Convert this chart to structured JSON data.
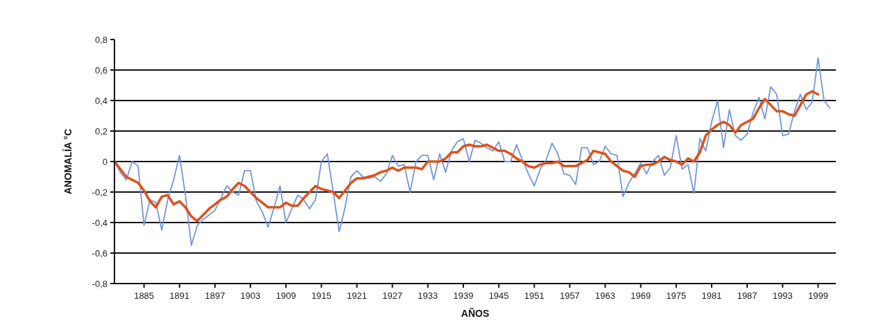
{
  "chart_data": {
    "type": "line",
    "xlabel": "AÑOS",
    "ylabel": "ANOMALÍA °C",
    "xlim": [
      1880,
      2002
    ],
    "xticks": [
      1885,
      1891,
      1897,
      1903,
      1909,
      1915,
      1921,
      1927,
      1933,
      1939,
      1945,
      1951,
      1957,
      1963,
      1969,
      1975,
      1981,
      1987,
      1993,
      1999
    ],
    "ylim": [
      -0.8,
      0.8
    ],
    "yticks": [
      {
        "value": -0.8,
        "label": "-0,8"
      },
      {
        "value": -0.6,
        "label": "-0,6"
      },
      {
        "value": -0.4,
        "label": "-0,4"
      },
      {
        "value": -0.2,
        "label": "-0,2"
      },
      0,
      {
        "value": 0.2,
        "label": "0,2"
      },
      {
        "value": 0.4,
        "label": "0,4"
      },
      {
        "value": 0.6,
        "label": "0,6"
      },
      {
        "value": 0.8,
        "label": "0,8"
      }
    ],
    "grid": "y",
    "line_style": "solid",
    "marker": "none",
    "series": [
      {
        "color": "#7096dc",
        "x": [
          1880,
          1881,
          1882,
          1883,
          1884,
          1885,
          1886,
          1887,
          1888,
          1889,
          1890,
          1891,
          1892,
          1893,
          1894,
          1895,
          1896,
          1897,
          1898,
          1899,
          1900,
          1901,
          1902,
          1903,
          1904,
          1905,
          1906,
          1907,
          1908,
          1909,
          1910,
          1911,
          1912,
          1913,
          1914,
          1915,
          1916,
          1917,
          1918,
          1919,
          1920,
          1921,
          1922,
          1923,
          1924,
          1925,
          1926,
          1927,
          1928,
          1929,
          1930,
          1931,
          1932,
          1933,
          1934,
          1935,
          1936,
          1937,
          1938,
          1939,
          1940,
          1941,
          1942,
          1943,
          1944,
          1945,
          1946,
          1947,
          1948,
          1949,
          1950,
          1951,
          1952,
          1953,
          1954,
          1955,
          1956,
          1957,
          1958,
          1959,
          1960,
          1961,
          1962,
          1963,
          1964,
          1965,
          1966,
          1967,
          1968,
          1969,
          1970,
          1971,
          1972,
          1973,
          1974,
          1975,
          1976,
          1977,
          1978,
          1979,
          1980,
          1981,
          1982,
          1983,
          1984,
          1985,
          1986,
          1987,
          1988,
          1989,
          1990,
          1991,
          1992,
          1993,
          1994,
          1995,
          1996,
          1997,
          1998,
          1999,
          2000,
          2001
        ],
        "values": [
          0,
          -0.07,
          -0.12,
          0,
          -0.03,
          -0.42,
          -0.25,
          -0.27,
          -0.45,
          -0.25,
          -0.12,
          0.04,
          -0.22,
          -0.55,
          -0.42,
          -0.38,
          -0.35,
          -0.32,
          -0.24,
          -0.16,
          -0.2,
          -0.22,
          -0.06,
          -0.06,
          -0.26,
          -0.33,
          -0.43,
          -0.3,
          -0.16,
          -0.4,
          -0.31,
          -0.22,
          -0.25,
          -0.31,
          -0.25,
          0,
          0.05,
          -0.2,
          -0.46,
          -0.3,
          -0.1,
          -0.06,
          -0.1,
          -0.11,
          -0.1,
          -0.13,
          -0.08,
          0.04,
          -0.03,
          -0.02,
          -0.2,
          0,
          0.04,
          0.04,
          -0.12,
          0.05,
          -0.07,
          0.07,
          0.13,
          0.15,
          0,
          0.14,
          0.12,
          0.09,
          0.07,
          0.13,
          0,
          0,
          0.11,
          0.01,
          -0.08,
          -0.16,
          -0.05,
          0.01,
          0.12,
          0.05,
          -0.08,
          -0.09,
          -0.15,
          0.09,
          0.09,
          -0.02,
          0,
          0.1,
          0.05,
          0.04,
          -0.23,
          -0.14,
          -0.08,
          -0.01,
          -0.08,
          0,
          0.04,
          -0.09,
          -0.04,
          0.17,
          -0.05,
          -0.02,
          -0.21,
          0.15,
          0.07,
          0.26,
          0.4,
          0.09,
          0.34,
          0.17,
          0.14,
          0.18,
          0.32,
          0.42,
          0.28,
          0.49,
          0.44,
          0.17,
          0.18,
          0.33,
          0.44,
          0.34,
          0.39,
          0.68,
          0.4,
          0.35
        ]
      },
      {
        "color": "#e0501a",
        "x": [
          1880,
          1881,
          1882,
          1883,
          1884,
          1885,
          1886,
          1887,
          1888,
          1889,
          1890,
          1891,
          1892,
          1893,
          1894,
          1895,
          1896,
          1897,
          1898,
          1899,
          1900,
          1901,
          1902,
          1903,
          1904,
          1905,
          1906,
          1907,
          1908,
          1909,
          1910,
          1911,
          1912,
          1913,
          1914,
          1915,
          1916,
          1917,
          1918,
          1919,
          1920,
          1921,
          1922,
          1923,
          1924,
          1925,
          1926,
          1927,
          1928,
          1929,
          1930,
          1931,
          1932,
          1933,
          1934,
          1935,
          1936,
          1937,
          1938,
          1939,
          1940,
          1941,
          1942,
          1943,
          1944,
          1945,
          1946,
          1947,
          1948,
          1949,
          1950,
          1951,
          1952,
          1953,
          1954,
          1955,
          1956,
          1957,
          1958,
          1959,
          1960,
          1961,
          1962,
          1963,
          1964,
          1965,
          1966,
          1967,
          1968,
          1969,
          1970,
          1971,
          1972,
          1973,
          1974,
          1975,
          1976,
          1977,
          1978,
          1979,
          1980,
          1981,
          1982,
          1983,
          1984,
          1985,
          1986,
          1987,
          1988,
          1989,
          1990,
          1991,
          1992,
          1993,
          1994,
          1995,
          1996,
          1997,
          1998,
          1999
        ],
        "values": [
          0,
          -0.05,
          -0.1,
          -0.12,
          -0.14,
          -0.19,
          -0.26,
          -0.3,
          -0.23,
          -0.22,
          -0.28,
          -0.26,
          -0.3,
          -0.36,
          -0.39,
          -0.35,
          -0.31,
          -0.28,
          -0.25,
          -0.23,
          -0.18,
          -0.14,
          -0.16,
          -0.2,
          -0.24,
          -0.27,
          -0.3,
          -0.3,
          -0.3,
          -0.27,
          -0.29,
          -0.29,
          -0.24,
          -0.2,
          -0.16,
          -0.18,
          -0.19,
          -0.2,
          -0.24,
          -0.19,
          -0.14,
          -0.11,
          -0.11,
          -0.1,
          -0.09,
          -0.07,
          -0.06,
          -0.04,
          -0.06,
          -0.04,
          -0.04,
          -0.04,
          -0.05,
          0,
          0,
          0,
          0.02,
          0.06,
          0.06,
          0.1,
          0.11,
          0.1,
          0.1,
          0.11,
          0.09,
          0.07,
          0.07,
          0.05,
          0.02,
          0,
          -0.03,
          -0.04,
          -0.02,
          -0.01,
          -0.01,
          0,
          -0.03,
          -0.03,
          -0.03,
          -0.01,
          0.01,
          0.07,
          0.06,
          0.05,
          0,
          -0.03,
          -0.06,
          -0.07,
          -0.1,
          -0.03,
          -0.02,
          -0.02,
          0,
          0.03,
          0.01,
          0,
          -0.02,
          0.02,
          0,
          0.06,
          0.17,
          0.21,
          0.24,
          0.26,
          0.24,
          0.19,
          0.24,
          0.26,
          0.28,
          0.35,
          0.41,
          0.37,
          0.33,
          0.33,
          0.31,
          0.3,
          0.37,
          0.44,
          0.46,
          0.44
        ]
      }
    ]
  }
}
